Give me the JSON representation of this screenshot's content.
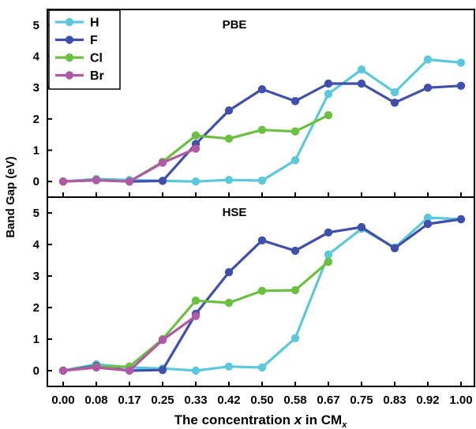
{
  "figure": {
    "ylabel": "Band Gap (eV)",
    "xlabel_prefix": "The concentration ",
    "xlabel_var": "x",
    "xlabel_mid": " in CM",
    "xlabel_sub": "x"
  },
  "chart_data": [
    {
      "type": "line",
      "title": "PBE",
      "x_tick_labels": [
        "0.00",
        "0.08",
        "0.17",
        "0.25",
        "0.33",
        "0.42",
        "0.50",
        "0.58",
        "0.67",
        "0.75",
        "0.83",
        "0.92",
        "1.00"
      ],
      "xlabel": "The concentration x in CMx",
      "ylabel": "Band Gap (eV)",
      "ylim": [
        -0.5,
        5.5
      ],
      "yticks": [
        0,
        1,
        2,
        3,
        4,
        5
      ],
      "legend_position": "top-left",
      "series": [
        {
          "name": "H",
          "color": "#5bc8dc",
          "x": [
            "0.00",
            "0.08",
            "0.17",
            "0.25",
            "0.33",
            "0.42",
            "0.50",
            "0.58",
            "0.67",
            "0.75",
            "0.83",
            "0.92",
            "1.00"
          ],
          "values": [
            0.0,
            0.08,
            0.05,
            0.02,
            0.0,
            0.05,
            0.03,
            0.68,
            2.8,
            3.58,
            2.85,
            3.9,
            3.8
          ]
        },
        {
          "name": "F",
          "color": "#3f4fab",
          "x": [
            "0.00",
            "0.08",
            "0.17",
            "0.25",
            "0.33",
            "0.42",
            "0.50",
            "0.58",
            "0.67",
            "0.75",
            "0.83",
            "0.92",
            "1.00"
          ],
          "values": [
            0.0,
            0.05,
            0.0,
            0.02,
            1.2,
            2.27,
            2.95,
            2.57,
            3.13,
            3.13,
            2.52,
            3.0,
            3.06
          ]
        },
        {
          "name": "Cl",
          "color": "#6cc040",
          "x": [
            "0.00",
            "0.08",
            "0.17",
            "0.25",
            "0.33",
            "0.42",
            "0.50",
            "0.58",
            "0.67"
          ],
          "values": [
            0.0,
            0.05,
            0.0,
            0.63,
            1.47,
            1.37,
            1.65,
            1.6,
            2.12
          ]
        },
        {
          "name": "Br",
          "color": "#b05aa6",
          "x": [
            "0.00",
            "0.08",
            "0.17",
            "0.25",
            "0.33"
          ],
          "values": [
            0.0,
            0.04,
            0.0,
            0.6,
            1.05
          ]
        }
      ]
    },
    {
      "type": "line",
      "title": "HSE",
      "x_tick_labels": [
        "0.00",
        "0.08",
        "0.17",
        "0.25",
        "0.33",
        "0.42",
        "0.50",
        "0.58",
        "0.67",
        "0.75",
        "0.83",
        "0.92",
        "1.00"
      ],
      "xlabel": "The concentration x in CMx",
      "ylabel": "Band Gap (eV)",
      "ylim": [
        -0.5,
        5.5
      ],
      "yticks": [
        0,
        1,
        2,
        3,
        4,
        5
      ],
      "series": [
        {
          "name": "H",
          "color": "#5bc8dc",
          "x": [
            "0.00",
            "0.08",
            "0.17",
            "0.25",
            "0.33",
            "0.42",
            "0.50",
            "0.58",
            "0.67",
            "0.75",
            "0.83",
            "0.92",
            "1.00"
          ],
          "values": [
            0.0,
            0.2,
            0.1,
            0.07,
            0.0,
            0.13,
            0.1,
            1.03,
            3.68,
            4.5,
            3.9,
            4.85,
            4.8
          ]
        },
        {
          "name": "F",
          "color": "#3f4fab",
          "x": [
            "0.00",
            "0.08",
            "0.17",
            "0.25",
            "0.33",
            "0.42",
            "0.50",
            "0.58",
            "0.67",
            "0.75",
            "0.83",
            "0.92",
            "1.00"
          ],
          "values": [
            0.0,
            0.15,
            0.0,
            0.02,
            1.8,
            3.12,
            4.13,
            3.8,
            4.38,
            4.55,
            3.88,
            4.65,
            4.8
          ]
        },
        {
          "name": "Cl",
          "color": "#6cc040",
          "x": [
            "0.00",
            "0.08",
            "0.17",
            "0.25",
            "0.33",
            "0.42",
            "0.50",
            "0.58",
            "0.67"
          ],
          "values": [
            0.0,
            0.12,
            0.13,
            1.0,
            2.22,
            2.15,
            2.53,
            2.55,
            3.45
          ]
        },
        {
          "name": "Br",
          "color": "#b05aa6",
          "x": [
            "0.00",
            "0.08",
            "0.17",
            "0.25",
            "0.33"
          ],
          "values": [
            0.0,
            0.1,
            0.0,
            0.97,
            1.73
          ]
        }
      ]
    }
  ]
}
